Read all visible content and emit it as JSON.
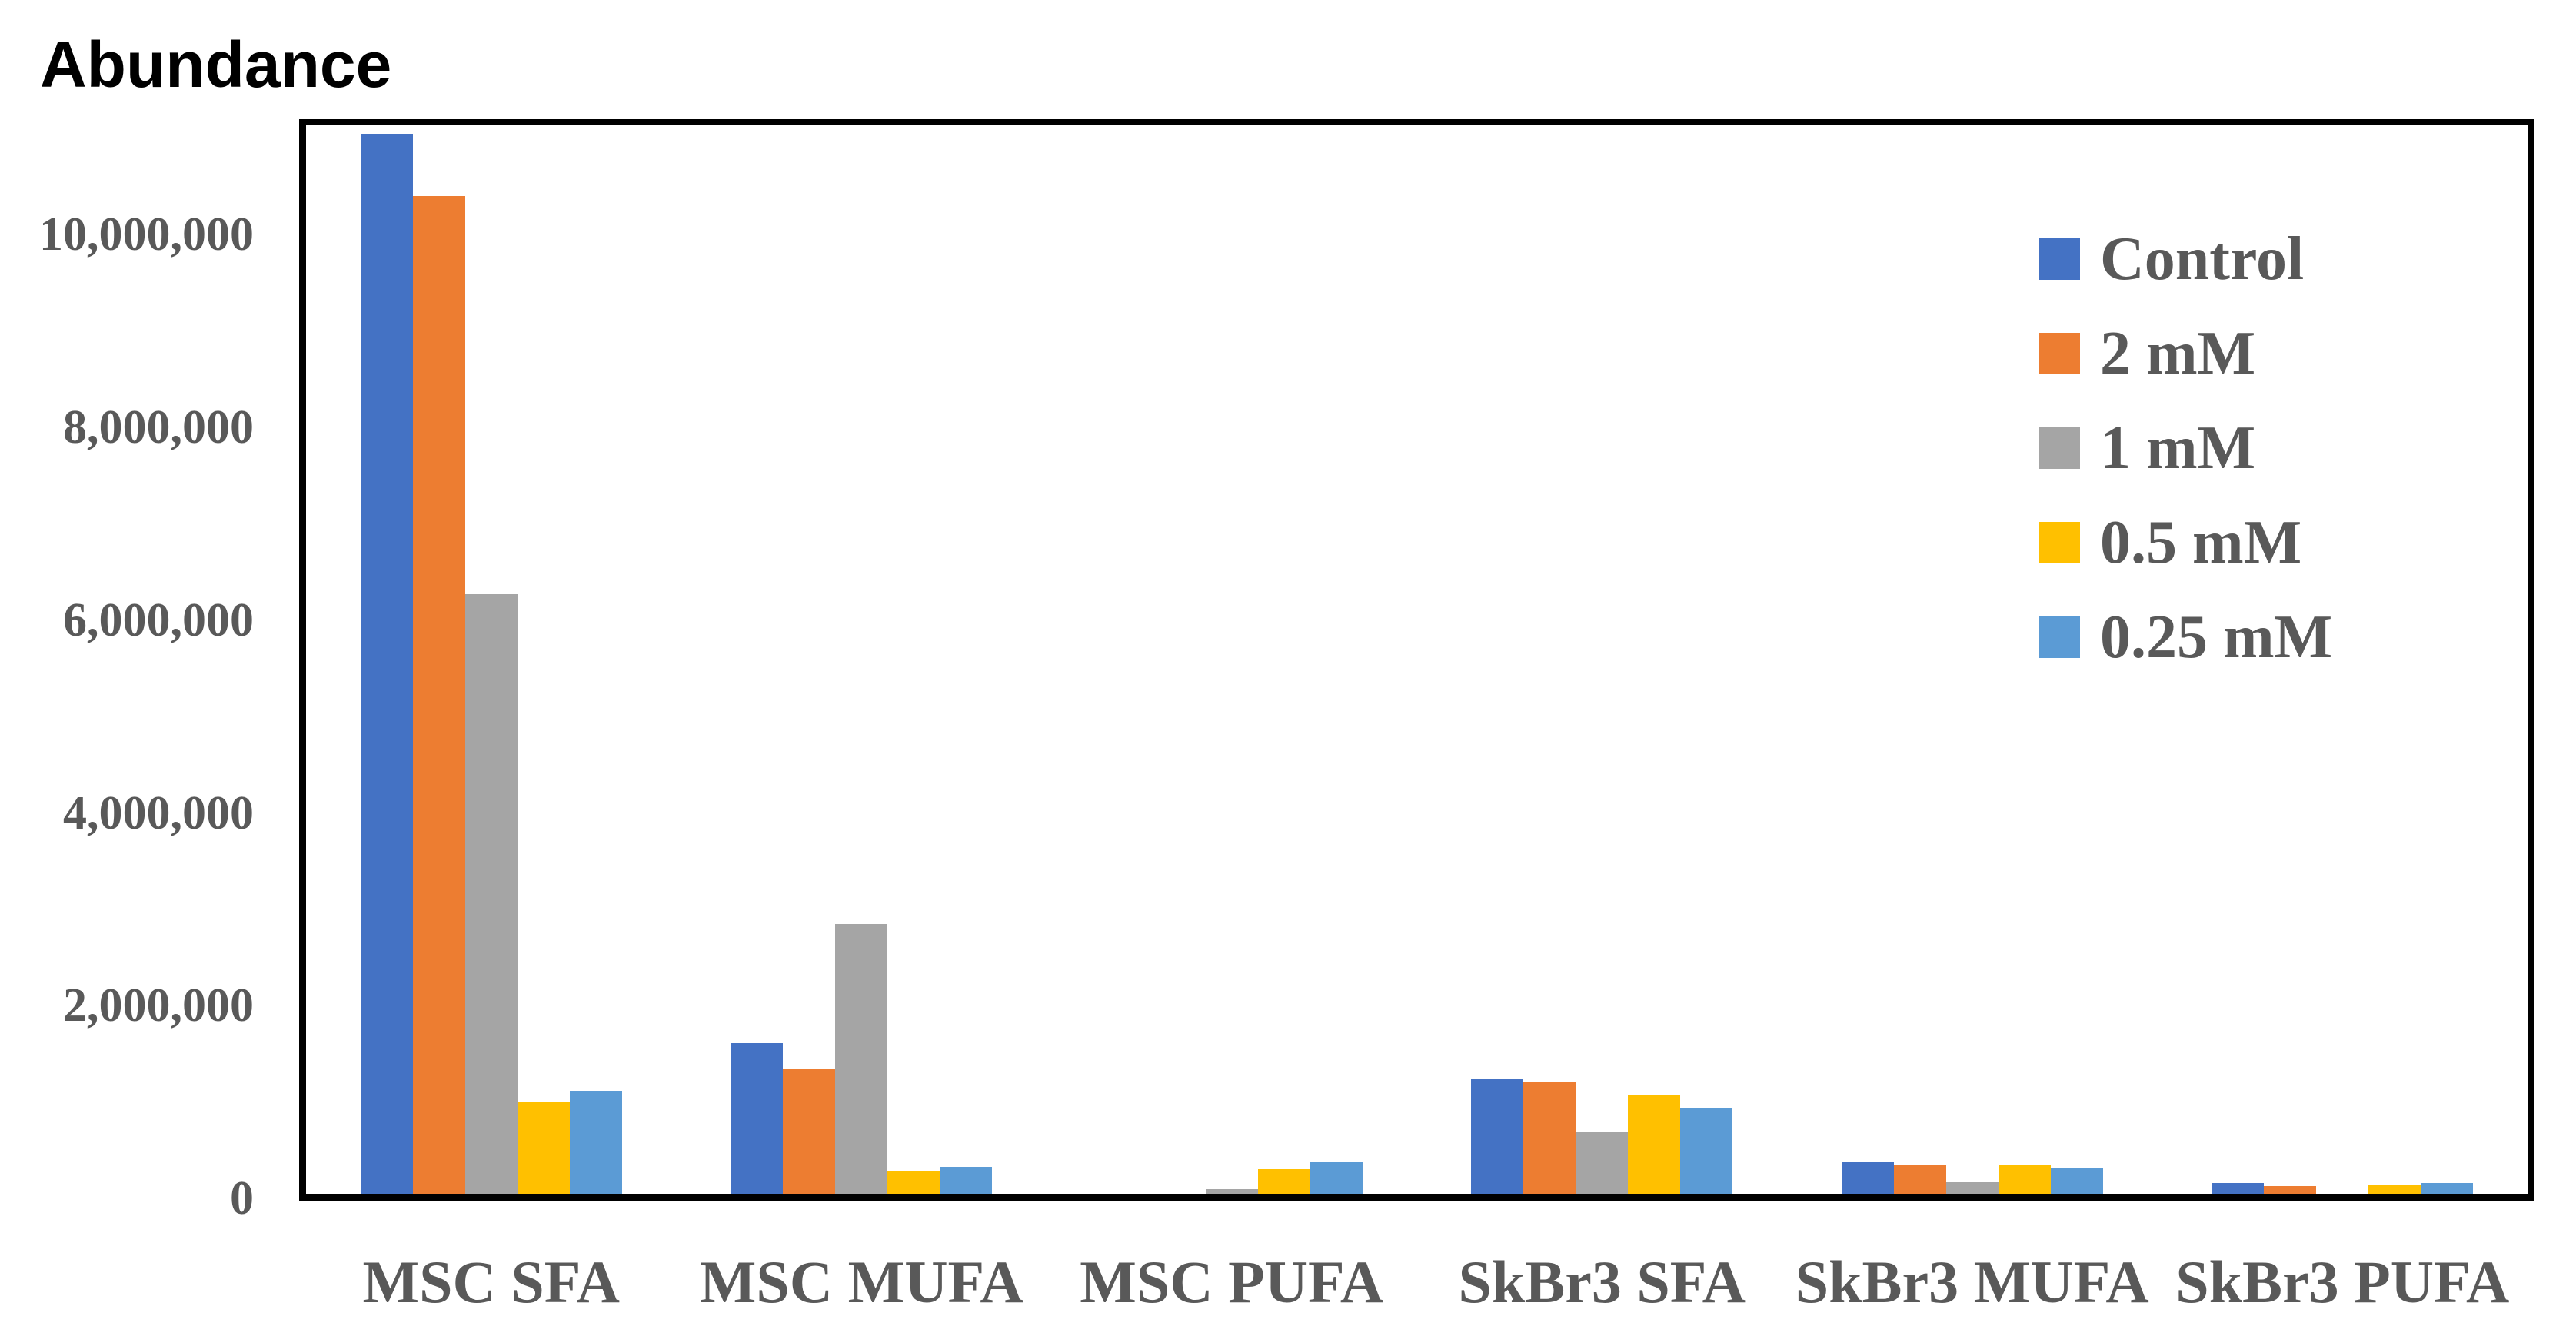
{
  "title": "Abundance",
  "colors": {
    "background": "#ffffff",
    "axis": "#000000",
    "text_gray": "#595959",
    "title_color": "#000000"
  },
  "chart_data": {
    "type": "bar",
    "title": "Abundance",
    "xlabel": "",
    "ylabel": "Abundance",
    "grid": false,
    "legend_position": "upper right",
    "ylim": [
      0,
      11200000
    ],
    "yticks": [
      0,
      2000000,
      4000000,
      6000000,
      8000000,
      10000000
    ],
    "ytick_labels": [
      "0",
      "2,000,000",
      "4,000,000",
      "6,000,000",
      "8,000,000",
      "10,000,000"
    ],
    "categories": [
      "MSC SFA",
      "MSC MUFA",
      "MSC PUFA",
      "SkBr3 SFA",
      "SkBr3 MUFA",
      "SkBr3 PUFA"
    ],
    "series": [
      {
        "name": "Control",
        "color": "#4472C4",
        "values": [
          11050000,
          1610000,
          50000,
          1240000,
          380000,
          160000
        ]
      },
      {
        "name": "2 mM",
        "color": "#ED7D31",
        "values": [
          10400000,
          1340000,
          0,
          1210000,
          350000,
          130000
        ]
      },
      {
        "name": "1 mM",
        "color": "#A5A5A5",
        "values": [
          6270000,
          2850000,
          100000,
          690000,
          170000,
          50000
        ]
      },
      {
        "name": "0.5 mM",
        "color": "#FFC000",
        "values": [
          1000000,
          290000,
          300000,
          1080000,
          340000,
          140000
        ]
      },
      {
        "name": "0.25 mM",
        "color": "#5B9BD5",
        "values": [
          1120000,
          330000,
          380000,
          940000,
          310000,
          160000
        ]
      }
    ]
  }
}
